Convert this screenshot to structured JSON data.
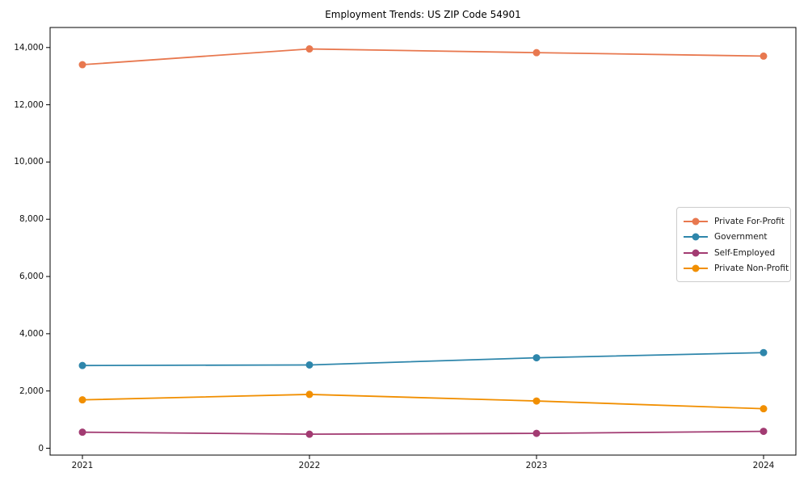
{
  "chart_data": {
    "type": "line",
    "title": "Employment Trends: US ZIP Code 54901",
    "xlabel": "",
    "ylabel": "",
    "x": [
      "2021",
      "2022",
      "2023",
      "2024"
    ],
    "series": [
      {
        "name": "Private For-Profit",
        "color": "#e8784f",
        "values": [
          13400,
          13950,
          13820,
          13700
        ]
      },
      {
        "name": "Government",
        "color": "#2e86ab",
        "values": [
          2890,
          2910,
          3160,
          3340
        ]
      },
      {
        "name": "Self-Employed",
        "color": "#a23b72",
        "values": [
          560,
          490,
          520,
          590
        ]
      },
      {
        "name": "Private Non-Profit",
        "color": "#f18f01",
        "values": [
          1690,
          1880,
          1650,
          1380
        ]
      }
    ],
    "ylim": [
      -240,
      14700
    ],
    "yticks": [
      {
        "value": 0,
        "label": "0"
      },
      {
        "value": 2000,
        "label": "2,000"
      },
      {
        "value": 4000,
        "label": "4,000"
      },
      {
        "value": 6000,
        "label": "6,000"
      },
      {
        "value": 8000,
        "label": "8,000"
      },
      {
        "value": 10000,
        "label": "10,000"
      },
      {
        "value": 12000,
        "label": "12,000"
      },
      {
        "value": 14000,
        "label": "14,000"
      }
    ],
    "legend_position": "center right",
    "grid": false,
    "spine_color": "#000000",
    "background_color": "#ffffff"
  }
}
